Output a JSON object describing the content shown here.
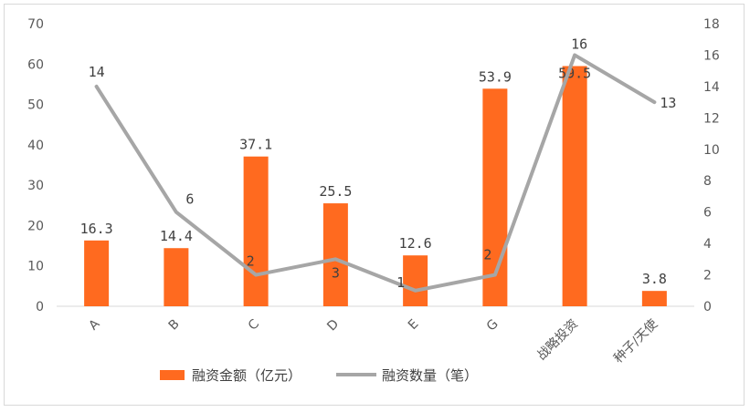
{
  "chart_data": {
    "type": "bar",
    "categories": [
      "A",
      "B",
      "C",
      "D",
      "E",
      "G",
      "战略投资",
      "种子/天使"
    ],
    "series": [
      {
        "name": "融资金额（亿元）",
        "type": "bar",
        "axis": "left",
        "color": "#ff6a1f",
        "values": [
          16.3,
          14.4,
          37.1,
          25.5,
          12.6,
          53.9,
          59.5,
          3.8
        ],
        "labels": [
          "16.3",
          "14.4",
          "37.1",
          "25.5",
          "12.6",
          "53.9",
          "59.5",
          "3.8"
        ]
      },
      {
        "name": "融资数量（笔）",
        "type": "line",
        "axis": "right",
        "color": "#a6a6a6",
        "values": [
          14,
          6,
          2,
          3,
          1,
          2,
          16,
          13
        ],
        "labels": [
          "14",
          "6",
          "2",
          "3",
          "1",
          "2",
          "16",
          "13"
        ]
      }
    ],
    "y_left": {
      "ylim": [
        0,
        70
      ],
      "ticks": [
        "0",
        "10",
        "20",
        "30",
        "40",
        "50",
        "60",
        "70"
      ]
    },
    "y_right": {
      "ylim": [
        0,
        18
      ],
      "ticks": [
        "0",
        "2",
        "4",
        "6",
        "8",
        "10",
        "12",
        "14",
        "16",
        "18"
      ]
    },
    "grid": false,
    "legend_position": "bottom"
  }
}
